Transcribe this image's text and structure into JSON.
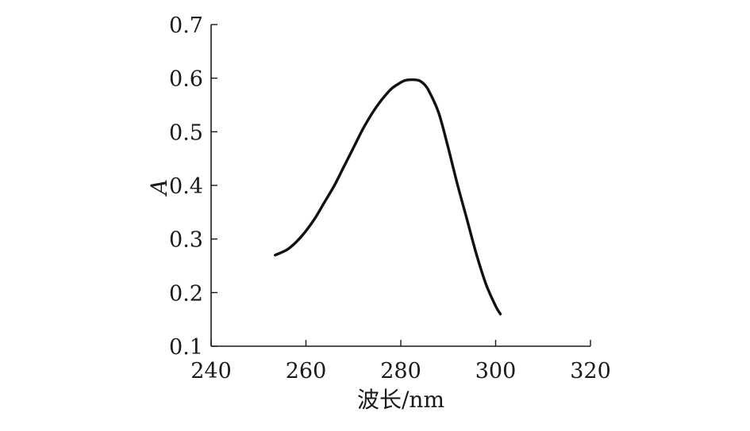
{
  "chart_data": {
    "type": "line",
    "title": "",
    "xlabel": "波长/nm",
    "ylabel": "A",
    "xlim": [
      240,
      320
    ],
    "ylim": [
      0.1,
      0.7
    ],
    "x_ticks": [
      240,
      260,
      280,
      300,
      320
    ],
    "y_ticks": [
      0.1,
      0.2,
      0.3,
      0.4,
      0.5,
      0.6,
      0.7
    ],
    "x_tick_labels": [
      "240",
      "260",
      "280",
      "300",
      "320"
    ],
    "y_tick_labels": [
      "0.1",
      "0.2",
      "0.3",
      "0.4",
      "0.5",
      "0.6",
      "0.7"
    ],
    "grid": false,
    "legend": "none",
    "series": [
      {
        "color": "#111111",
        "x": [
          253.5,
          256,
          258,
          260,
          262,
          264,
          266,
          268,
          270,
          272,
          274,
          276,
          278,
          280,
          281,
          282,
          283,
          284,
          285,
          286,
          288,
          290,
          292,
          294,
          296,
          298,
          300,
          301
        ],
        "y": [
          0.27,
          0.28,
          0.295,
          0.315,
          0.34,
          0.37,
          0.4,
          0.435,
          0.47,
          0.505,
          0.535,
          0.56,
          0.58,
          0.592,
          0.596,
          0.597,
          0.597,
          0.595,
          0.588,
          0.575,
          0.535,
          0.47,
          0.4,
          0.335,
          0.27,
          0.215,
          0.175,
          0.16
        ]
      }
    ]
  }
}
